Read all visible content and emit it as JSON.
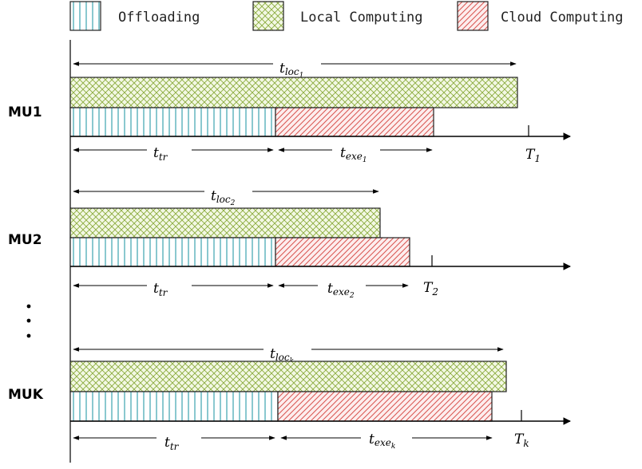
{
  "legend": {
    "offloading": "Offloading",
    "local": "Local Computing",
    "cloud": "Cloud Computing"
  },
  "colors": {
    "offloading_stroke": "#2a9aa8",
    "local_stroke": "#8aab3c",
    "local_fill": "#f3f8e4",
    "cloud_stroke": "#d9534f",
    "cloud_fill": "#fdeeee"
  },
  "mu1": {
    "label": "MU1",
    "t_loc": "t",
    "t_loc_sub": "loc",
    "t_loc_subsub": "1",
    "t_tr": "t",
    "t_tr_sub": "tr",
    "t_exe": "t",
    "t_exe_sub": "exe",
    "t_exe_subsub": "1",
    "T": "T",
    "T_sub": "1"
  },
  "mu2": {
    "label": "MU2",
    "t_loc": "t",
    "t_loc_sub": "loc",
    "t_loc_subsub": "2",
    "t_tr": "t",
    "t_tr_sub": "tr",
    "t_exe": "t",
    "t_exe_sub": "exe",
    "t_exe_subsub": "2",
    "T": "T",
    "T_sub": "2"
  },
  "muk": {
    "label": "MUK",
    "t_loc": "t",
    "t_loc_sub": "loc",
    "t_loc_subsub": "k",
    "t_tr": "t",
    "t_tr_sub": "tr",
    "t_exe": "t",
    "t_exe_sub": "exe",
    "t_exe_subsub": "k",
    "T": "T",
    "T_sub": "k"
  }
}
